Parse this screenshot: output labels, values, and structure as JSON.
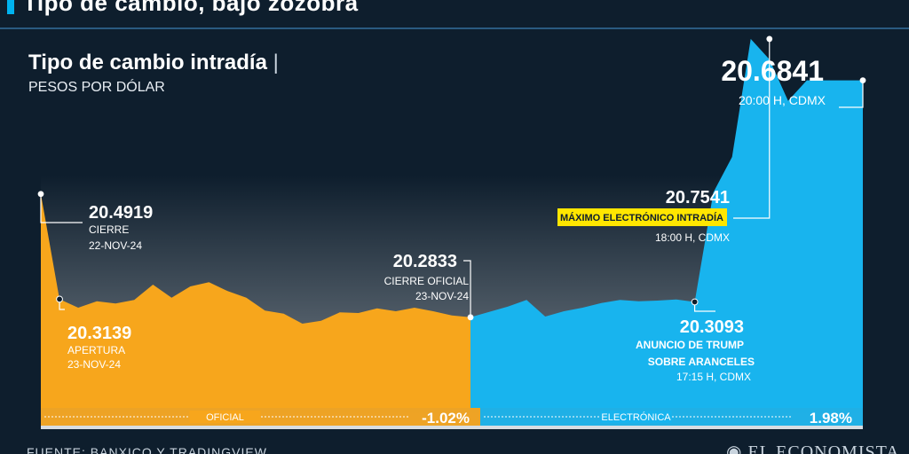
{
  "header": {
    "title": "Tipo de cambio, bajo zozobra"
  },
  "chart_data": {
    "type": "area",
    "title": "Tipo de cambio intradía",
    "subtitle": "PESOS POR DÓLAR",
    "ylim": [
      20.13,
      20.76
    ],
    "series": [
      {
        "name": "OFICIAL",
        "color": "#f7a61c",
        "x": [
          0,
          1,
          2,
          3,
          4,
          5,
          6,
          7,
          8,
          9,
          10,
          11,
          12,
          13,
          14,
          15,
          16,
          17,
          18,
          19,
          20,
          21,
          22,
          23
        ],
        "values": [
          20.4919,
          20.3139,
          20.2995,
          20.3105,
          20.3065,
          20.3125,
          20.3385,
          20.3165,
          20.3355,
          20.3425,
          20.3275,
          20.3165,
          20.2945,
          20.2895,
          20.2725,
          20.2775,
          20.2915,
          20.2905,
          20.2985,
          20.2935,
          20.2995,
          20.2935,
          20.2865,
          20.2833
        ]
      },
      {
        "name": "ELECTRÓNICA",
        "color": "#18b4ee",
        "x": [
          23,
          24,
          25,
          26,
          27,
          28,
          29,
          30,
          31,
          32,
          33,
          34,
          35,
          36,
          37,
          38,
          39,
          40,
          41,
          42,
          43,
          44
        ],
        "values": [
          20.2833,
          20.2925,
          20.3015,
          20.3125,
          20.2845,
          20.2935,
          20.2995,
          20.3075,
          20.3125,
          20.3105,
          20.3115,
          20.3135,
          20.3093,
          20.4945,
          20.5545,
          20.7541,
          20.7195,
          20.6495,
          20.6841,
          20.6841,
          20.6841,
          20.6841
        ]
      }
    ],
    "annotations": [
      {
        "id": "cierre",
        "value": "20.4919",
        "lines": [
          "CIERRE",
          "22-NOV-24"
        ]
      },
      {
        "id": "apertura",
        "value": "20.3139",
        "lines": [
          "APERTURA",
          "23-NOV-24"
        ]
      },
      {
        "id": "cierre_oficial",
        "value": "20.2833",
        "lines": [
          "CIERRE OFICIAL",
          "23-NOV-24"
        ]
      },
      {
        "id": "trump",
        "value": "20.3093",
        "lines": [
          "ANUNCIO DE TRUMP",
          "SOBRE ARANCELES",
          "17:15 H, CDMX"
        ]
      },
      {
        "id": "maximo",
        "value": "20.7541",
        "highlight": "MÁXIMO ELECTRÓNICO INTRADÍA",
        "lines": [
          "18:00 H, CDMX"
        ]
      },
      {
        "id": "ultimo",
        "value": "20.6841",
        "lines": [
          "20:00 H, CDMX"
        ]
      }
    ],
    "segments": [
      {
        "label": "OFICIAL",
        "change": "-1.02%",
        "color": "#f7a61c"
      },
      {
        "label": "ELECTRÓNICA",
        "change": "1.98%",
        "color": "#18b4ee"
      }
    ]
  },
  "footer": {
    "source": "FUENTE: BANXICO Y TRADINGVIEW",
    "logo": "EL ECONOMISTA"
  }
}
